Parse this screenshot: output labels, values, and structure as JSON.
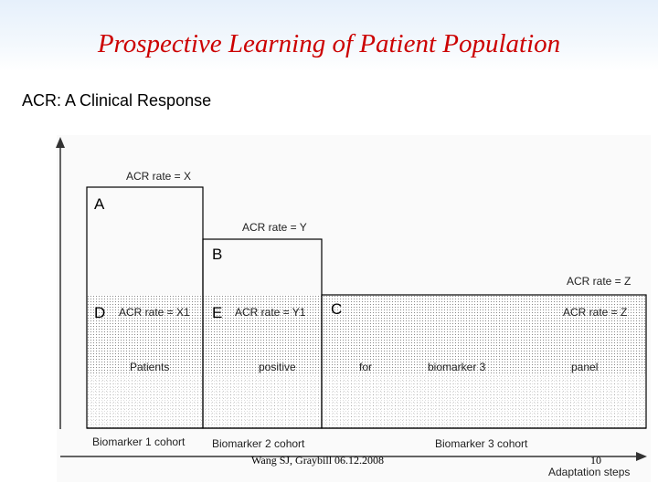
{
  "slide": {
    "title": "Prospective Learning of Patient Population",
    "subtitle": "ACR: A Clinical Response"
  },
  "diagram": {
    "blocks": {
      "A": "A",
      "B": "B",
      "C": "C",
      "D": "D",
      "E": "E"
    },
    "rates": {
      "x": "ACR rate = X",
      "y": "ACR rate = Y",
      "z_top": "ACR rate = Z",
      "x1": "ACR rate = X1",
      "y1": "ACR rate = Y1",
      "z_inner": "ACR rate = Z"
    },
    "band_words": [
      "Patients",
      "positive",
      "for",
      "biomarker 3",
      "panel"
    ],
    "cohorts": [
      "Biomarker 1 cohort",
      "Biomarker 2 cohort",
      "Biomarker 3 cohort"
    ],
    "x_axis_label": "Adaptation steps"
  },
  "footer": {
    "citation": "Wang SJ, Graybill 06.12.2008",
    "page_number": "10"
  }
}
